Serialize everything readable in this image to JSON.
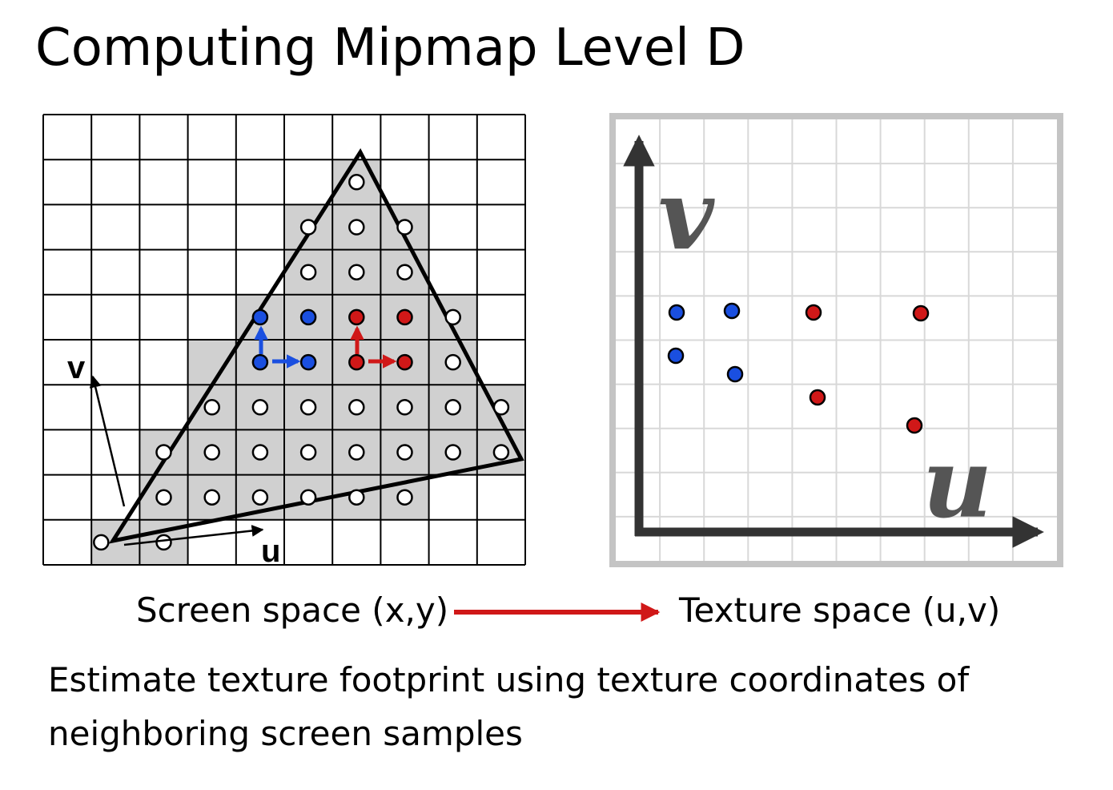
{
  "title": "Computing Mipmap Level D",
  "screen_space": {
    "u_label": "u",
    "v_label": "v",
    "caption": "Screen space (x,y)"
  },
  "texture_space": {
    "u_label": "u",
    "v_label": "v",
    "caption": "Texture space (u,v)"
  },
  "description": "Estimate texture footprint using texture coordinates of neighboring screen samples",
  "colors": {
    "blue": "#1a4fe0",
    "red": "#d01818",
    "arrow_red": "#d01818",
    "gray_fill": "#d0d0d0",
    "texture_axis": "#333333",
    "texture_grid": "#d8d8d8",
    "texture_frame": "#c4c4c4",
    "texture_letter": "#555555"
  }
}
